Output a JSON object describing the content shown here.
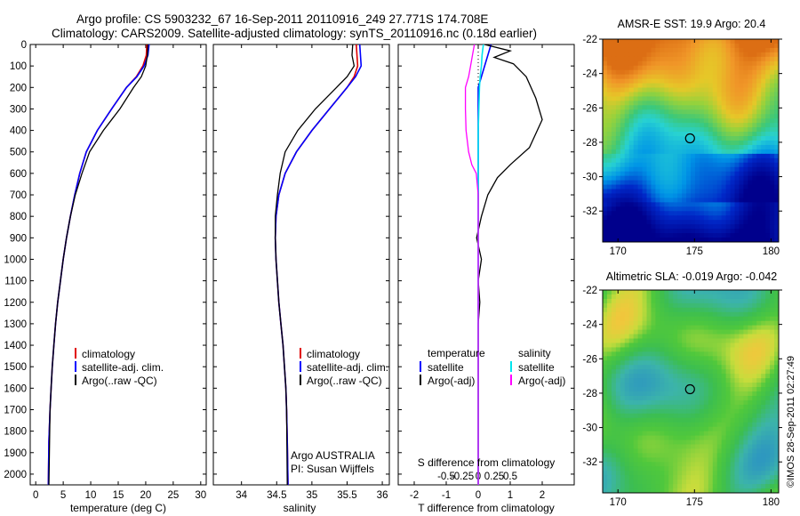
{
  "header": {
    "line1": "Argo profile: CS 5903232_67 16-Sep-2011 20110916_249 27.771S 174.708E",
    "line2": "Climatology: CARS2009. Satellite-adjusted climatology: synTS_20110916.nc (0.18d earlier)"
  },
  "colors": {
    "climatology": "#e00000",
    "satellite": "#0000ff",
    "argo": "#000000",
    "sat_salinity": "#00e5ee",
    "argo_salinity": "#ff00ff"
  },
  "chart_data": [
    {
      "type": "line",
      "panel": "temperature",
      "xlabel": "temperature (deg C)",
      "ylim": [
        2050,
        0
      ],
      "xlim": [
        -1,
        31
      ],
      "xticks": [
        0,
        5,
        10,
        15,
        20,
        25,
        30
      ],
      "yticks": [
        0,
        100,
        200,
        300,
        400,
        500,
        600,
        700,
        800,
        900,
        1000,
        1100,
        1200,
        1300,
        1400,
        1500,
        1600,
        1700,
        1800,
        1900,
        2000
      ],
      "legend": [
        "climatology",
        "satellite-adj. clim.",
        "Argo(..raw -QC)"
      ],
      "series": [
        {
          "name": "climatology",
          "x": [
            20.2,
            20.1,
            19.5,
            18.3,
            16.5,
            13.8,
            11.2,
            9.2,
            8.0,
            7.1,
            6.3,
            5.6,
            5.0,
            4.5,
            4.0,
            3.6,
            3.3,
            3.0,
            2.8,
            2.6,
            2.4,
            2.3
          ],
          "y": [
            0,
            50,
            100,
            150,
            200,
            300,
            400,
            500,
            600,
            700,
            800,
            900,
            1000,
            1100,
            1200,
            1300,
            1400,
            1500,
            1600,
            1700,
            1850,
            2050
          ]
        },
        {
          "name": "satellite-adj. clim.",
          "x": [
            20.6,
            20.4,
            19.7,
            18.4,
            16.5,
            13.8,
            11.2,
            9.2,
            8.0,
            7.1,
            6.3,
            5.6,
            5.0,
            4.5,
            4.0,
            3.6,
            3.3,
            3.0,
            2.8,
            2.6,
            2.4,
            2.3
          ],
          "y": [
            0,
            50,
            100,
            150,
            200,
            300,
            400,
            500,
            600,
            700,
            800,
            900,
            1000,
            1100,
            1200,
            1300,
            1400,
            1500,
            1600,
            1700,
            1850,
            2050
          ]
        },
        {
          "name": "Argo(..raw -QC)",
          "x": [
            20.4,
            20.3,
            20.0,
            19.2,
            17.8,
            15.3,
            12.3,
            9.8,
            8.4,
            7.2,
            6.3,
            5.6,
            5.0,
            4.5,
            4.0,
            3.6,
            3.3,
            3.0,
            2.8,
            2.6,
            2.4
          ],
          "y": [
            0,
            50,
            100,
            150,
            200,
            300,
            400,
            500,
            600,
            700,
            800,
            900,
            1000,
            1100,
            1200,
            1300,
            1400,
            1500,
            1600,
            1700,
            2050
          ]
        }
      ]
    },
    {
      "type": "line",
      "panel": "salinity",
      "xlabel": "salinity",
      "ylim": [
        2050,
        0
      ],
      "xlim": [
        33.6,
        36.1
      ],
      "xticks": [
        34,
        34.5,
        35,
        35.5,
        36
      ],
      "xticklabels": [
        "34",
        "34.5",
        "35",
        "35.5",
        "36"
      ],
      "legend": [
        "climatology",
        "satellite-adj. clim.",
        "Argo(..raw -QC)"
      ],
      "annotation": [
        "Argo AUSTRALIA",
        "PI: Susan Wijffels"
      ],
      "series": [
        {
          "name": "climatology",
          "x": [
            35.63,
            35.64,
            35.65,
            35.6,
            35.5,
            35.25,
            35.0,
            34.78,
            34.62,
            34.53,
            34.49,
            34.48,
            34.49,
            34.51,
            34.53,
            34.56,
            34.59,
            34.61,
            34.63,
            34.64,
            34.65,
            34.66
          ],
          "y": [
            0,
            50,
            100,
            150,
            200,
            300,
            400,
            500,
            600,
            700,
            800,
            900,
            1000,
            1100,
            1200,
            1300,
            1400,
            1500,
            1600,
            1700,
            1850,
            2050
          ]
        },
        {
          "name": "satellite-adj. clim.",
          "x": [
            35.68,
            35.69,
            35.7,
            35.62,
            35.5,
            35.25,
            35.0,
            34.78,
            34.62,
            34.53,
            34.49,
            34.48,
            34.49,
            34.51,
            34.53,
            34.56,
            34.59,
            34.61,
            34.63,
            34.64,
            34.65,
            34.66
          ],
          "y": [
            0,
            50,
            100,
            150,
            200,
            300,
            400,
            500,
            600,
            700,
            800,
            900,
            1000,
            1100,
            1200,
            1300,
            1400,
            1500,
            1600,
            1700,
            1850,
            2050
          ]
        },
        {
          "name": "Argo(..raw -QC)",
          "x": [
            35.58,
            35.57,
            35.6,
            35.5,
            35.35,
            35.05,
            34.8,
            34.62,
            34.55,
            34.51,
            34.48,
            34.48,
            34.49,
            34.51,
            34.53,
            34.56,
            34.59,
            34.61,
            34.63,
            34.64,
            34.65
          ],
          "y": [
            0,
            50,
            100,
            150,
            200,
            300,
            400,
            500,
            600,
            700,
            800,
            900,
            1000,
            1100,
            1200,
            1300,
            1400,
            1500,
            1600,
            1700,
            2050
          ]
        }
      ]
    },
    {
      "type": "line",
      "panel": "difference",
      "xlabel": "T difference from climatology",
      "xlabel_top": "S difference from climatology",
      "ylim": [
        2050,
        0
      ],
      "xlim": [
        -2.5,
        3
      ],
      "xticks": [
        -2,
        -1,
        0,
        1,
        2
      ],
      "xticklabels": [
        "-2",
        "-1",
        "0",
        "1",
        "2"
      ],
      "sticks": [
        -0.5,
        -0.25,
        0,
        0.25,
        0.5
      ],
      "sticklabels": [
        "-0.5",
        "-0.25",
        "0",
        "0.25",
        "0.5"
      ],
      "legend_titles": [
        "temperature",
        "salinity"
      ],
      "legend_left": [
        "satellite",
        "Argo(-adj)"
      ],
      "legend_right": [
        "satellite",
        "Argo(-adj)"
      ],
      "series": [
        {
          "name": "T satellite",
          "x": [
            0.4,
            0.3,
            0.2,
            0.1,
            0.0,
            0,
            0,
            0,
            0,
            0,
            0,
            0,
            0,
            0,
            0,
            0,
            0,
            0,
            0,
            0,
            0
          ],
          "y": [
            0,
            50,
            100,
            150,
            200,
            300,
            400,
            500,
            600,
            700,
            800,
            900,
            1000,
            1100,
            1200,
            1300,
            1400,
            1500,
            1600,
            1700,
            2050
          ]
        },
        {
          "name": "T Argo(-adj)",
          "x": [
            0.2,
            1.0,
            0.5,
            1.1,
            1.5,
            1.8,
            2.0,
            1.6,
            1.0,
            0.6,
            0.3,
            0.1,
            -0.05,
            0.1,
            0,
            0.05,
            0,
            0,
            0,
            0,
            0
          ],
          "y": [
            0,
            30,
            60,
            90,
            150,
            250,
            350,
            480,
            560,
            620,
            700,
            800,
            900,
            1000,
            1100,
            1200,
            1300,
            1400,
            1500,
            1700,
            2050
          ]
        },
        {
          "name": "S satellite",
          "x": [
            0.08,
            0.06,
            0.05,
            0.03,
            0.02,
            0.01,
            0,
            0,
            0,
            0,
            0,
            0,
            0,
            0,
            0,
            0
          ],
          "y": [
            0,
            50,
            100,
            150,
            200,
            300,
            400,
            500,
            600,
            700,
            800,
            900,
            1000,
            1100,
            1500,
            2050
          ]
        },
        {
          "name": "S Argo(-adj)",
          "x": [
            -0.06,
            -0.09,
            -0.12,
            -0.15,
            -0.2,
            -0.2,
            -0.19,
            -0.15,
            -0.1,
            -0.03,
            0,
            0,
            0
          ],
          "y": [
            0,
            50,
            100,
            150,
            200,
            300,
            400,
            500,
            560,
            600,
            700,
            1000,
            2050
          ]
        }
      ]
    },
    {
      "type": "heatmap",
      "panel": "sst_map",
      "title": "AMSR-E SST: 19.9 Argo: 20.4",
      "xticks": [
        170,
        175,
        180
      ],
      "yticks": [
        -22,
        -24,
        -26,
        -28,
        -30,
        -32
      ],
      "xlim": [
        169,
        180.5
      ],
      "ylim": [
        -33.8,
        -22
      ],
      "marker": {
        "lon": 174.708,
        "lat": -27.771
      }
    },
    {
      "type": "heatmap",
      "panel": "sla_map",
      "title": "Altimetric SLA: -0.019 Argo: -0.042",
      "xticks": [
        170,
        175,
        180
      ],
      "yticks": [
        -22,
        -24,
        -26,
        -28,
        -30,
        -32
      ],
      "xlim": [
        169,
        180.5
      ],
      "ylim": [
        -33.8,
        -22
      ],
      "marker": {
        "lon": 174.708,
        "lat": -27.771
      }
    }
  ],
  "side_label": "©IMOS 28-Sep-2011 02:27:49"
}
